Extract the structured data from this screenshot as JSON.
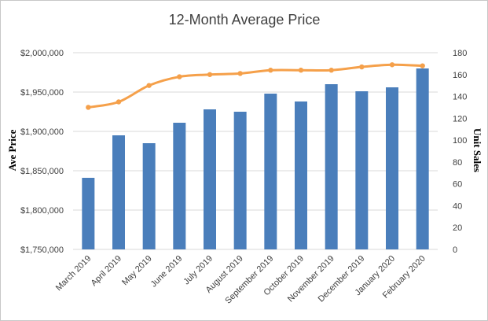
{
  "chart_data": {
    "type": "bar+line",
    "title": "12-Month Average Price",
    "categories": [
      "March 2019",
      "April 2019",
      "May 2019",
      "June 2019",
      "July 2019",
      "August 2019",
      "September 2019",
      "October 2019",
      "November 2019",
      "December 2019",
      "January 2020",
      "February 2020"
    ],
    "y_left": {
      "label": "Ave Price",
      "range": [
        1750000,
        2000000
      ],
      "ticks": [
        "$1,750,000",
        "$1,800,000",
        "$1,850,000",
        "$1,900,000",
        "$1,950,000",
        "$2,000,000"
      ],
      "tick_values": [
        1750000,
        1800000,
        1850000,
        1900000,
        1950000,
        2000000
      ]
    },
    "y_right": {
      "label": "Unit Sales",
      "range": [
        0,
        180
      ],
      "ticks": [
        "0",
        "20",
        "40",
        "60",
        "80",
        "100",
        "120",
        "140",
        "160",
        "180"
      ],
      "tick_values": [
        0,
        20,
        40,
        60,
        80,
        100,
        120,
        140,
        160,
        180
      ]
    },
    "series": [
      {
        "type": "bar",
        "axis": "left",
        "color": "#4a7ebb",
        "values": [
          1841000,
          1895000,
          1885000,
          1911000,
          1928000,
          1925000,
          1948000,
          1938000,
          1960000,
          1951000,
          1956000,
          1980000
        ]
      },
      {
        "type": "line",
        "axis": "right",
        "color": "#f5a04a",
        "values": [
          130,
          135,
          150,
          158,
          160,
          161,
          164,
          164,
          164,
          167,
          169,
          168
        ]
      }
    ],
    "grid": true,
    "legend": "none"
  }
}
